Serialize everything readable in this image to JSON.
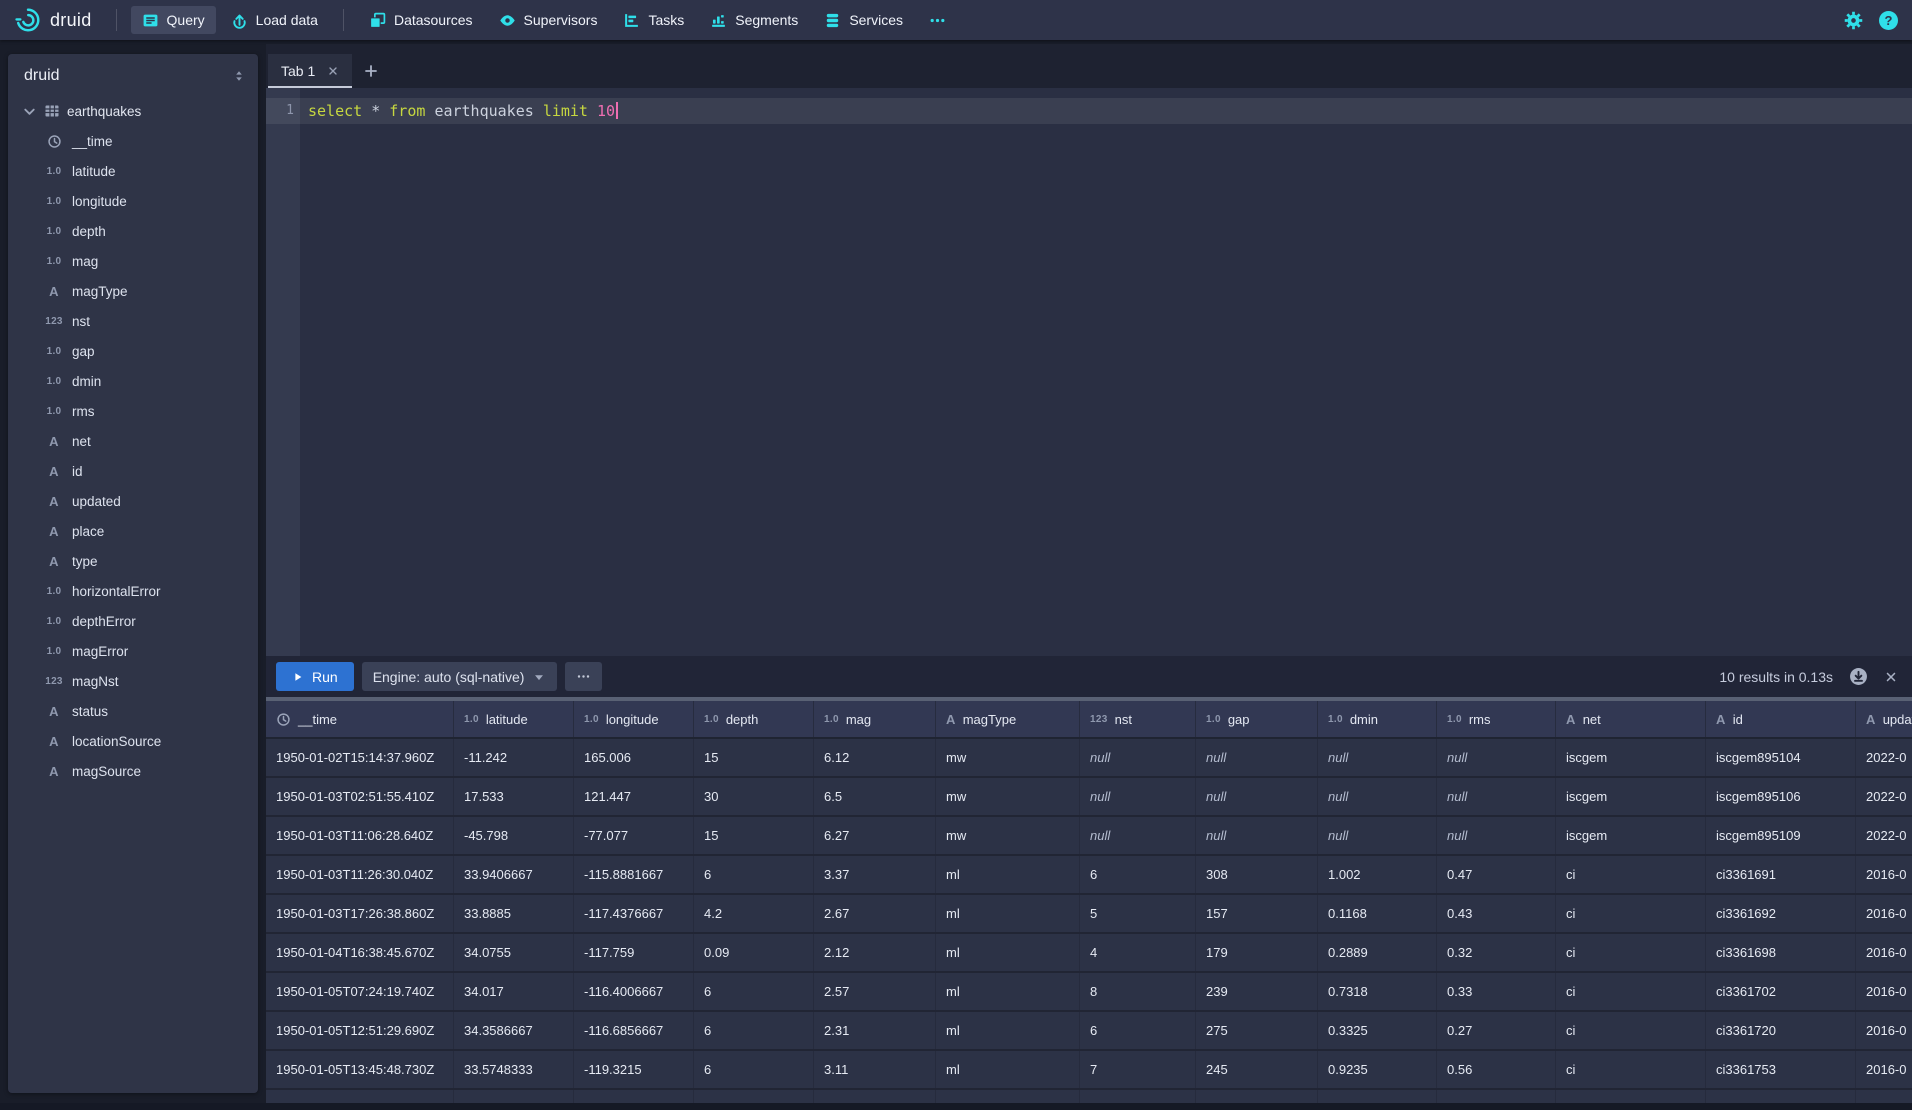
{
  "colors": {
    "accent_cyan": "#2fdfe9",
    "run_blue": "#2d72d2",
    "sql_keyword": "#c6d740",
    "sql_number": "#ef6eb1"
  },
  "navbar": {
    "brand": "druid",
    "primary": [
      {
        "label": "Query",
        "icon": "query-icon",
        "active": true
      },
      {
        "label": "Load data",
        "icon": "load-data-icon",
        "active": false
      }
    ],
    "secondary": [
      {
        "label": "Datasources",
        "icon": "datasources-icon",
        "active": false
      },
      {
        "label": "Supervisors",
        "icon": "supervisors-icon",
        "active": false
      },
      {
        "label": "Tasks",
        "icon": "tasks-icon",
        "active": false
      },
      {
        "label": "Segments",
        "icon": "segments-icon",
        "active": false
      },
      {
        "label": "Services",
        "icon": "services-icon",
        "active": false
      },
      {
        "label": "",
        "icon": "more-icon",
        "active": false
      }
    ],
    "right_icons": [
      "gear-icon",
      "help-icon"
    ]
  },
  "sidebar": {
    "title": "druid",
    "tree": {
      "root": {
        "label": "earthquakes",
        "icon": "table-icon",
        "expanded": true
      },
      "children": [
        {
          "name": "__time",
          "kind": "time"
        },
        {
          "name": "latitude",
          "kind": "float"
        },
        {
          "name": "longitude",
          "kind": "float"
        },
        {
          "name": "depth",
          "kind": "float"
        },
        {
          "name": "mag",
          "kind": "float"
        },
        {
          "name": "magType",
          "kind": "str"
        },
        {
          "name": "nst",
          "kind": "int"
        },
        {
          "name": "gap",
          "kind": "float"
        },
        {
          "name": "dmin",
          "kind": "float"
        },
        {
          "name": "rms",
          "kind": "float"
        },
        {
          "name": "net",
          "kind": "str"
        },
        {
          "name": "id",
          "kind": "str"
        },
        {
          "name": "updated",
          "kind": "str"
        },
        {
          "name": "place",
          "kind": "str"
        },
        {
          "name": "type",
          "kind": "str"
        },
        {
          "name": "horizontalError",
          "kind": "float"
        },
        {
          "name": "depthError",
          "kind": "float"
        },
        {
          "name": "magError",
          "kind": "float"
        },
        {
          "name": "magNst",
          "kind": "int"
        },
        {
          "name": "status",
          "kind": "str"
        },
        {
          "name": "locationSource",
          "kind": "str"
        },
        {
          "name": "magSource",
          "kind": "str"
        }
      ]
    }
  },
  "tabs": {
    "items": [
      {
        "label": "Tab 1",
        "active": true
      }
    ]
  },
  "editor": {
    "line_number": "1",
    "tokens": [
      {
        "t": "select",
        "k": "kw"
      },
      {
        "t": "*",
        "k": "id"
      },
      {
        "t": "from",
        "k": "kw"
      },
      {
        "t": "earthquakes",
        "k": "id"
      },
      {
        "t": "limit",
        "k": "kw"
      },
      {
        "t": "10",
        "k": "num"
      }
    ]
  },
  "runbar": {
    "run_label": "Run",
    "engine_label": "Engine: auto (sql-native)",
    "results_text": "10 results in 0.13s"
  },
  "results": {
    "columns": [
      {
        "label": "__time",
        "kind": "time"
      },
      {
        "label": "latitude",
        "kind": "float"
      },
      {
        "label": "longitude",
        "kind": "float"
      },
      {
        "label": "depth",
        "kind": "float"
      },
      {
        "label": "mag",
        "kind": "float"
      },
      {
        "label": "magType",
        "kind": "str"
      },
      {
        "label": "nst",
        "kind": "int"
      },
      {
        "label": "gap",
        "kind": "float"
      },
      {
        "label": "dmin",
        "kind": "float"
      },
      {
        "label": "rms",
        "kind": "float"
      },
      {
        "label": "net",
        "kind": "str"
      },
      {
        "label": "id",
        "kind": "str"
      },
      {
        "label": "updated",
        "kind": "str"
      }
    ],
    "rows": [
      [
        "1950-01-02T15:14:37.960Z",
        "-11.242",
        "165.006",
        "15",
        "6.12",
        "mw",
        "null",
        "null",
        "null",
        "null",
        "iscgem",
        "iscgem895104",
        "2022-0"
      ],
      [
        "1950-01-03T02:51:55.410Z",
        "17.533",
        "121.447",
        "30",
        "6.5",
        "mw",
        "null",
        "null",
        "null",
        "null",
        "iscgem",
        "iscgem895106",
        "2022-0"
      ],
      [
        "1950-01-03T11:06:28.640Z",
        "-45.798",
        "-77.077",
        "15",
        "6.27",
        "mw",
        "null",
        "null",
        "null",
        "null",
        "iscgem",
        "iscgem895109",
        "2022-0"
      ],
      [
        "1950-01-03T11:26:30.040Z",
        "33.9406667",
        "-115.8881667",
        "6",
        "3.37",
        "ml",
        "6",
        "308",
        "1.002",
        "0.47",
        "ci",
        "ci3361691",
        "2016-0"
      ],
      [
        "1950-01-03T17:26:38.860Z",
        "33.8885",
        "-117.4376667",
        "4.2",
        "2.67",
        "ml",
        "5",
        "157",
        "0.1168",
        "0.43",
        "ci",
        "ci3361692",
        "2016-0"
      ],
      [
        "1950-01-04T16:38:45.670Z",
        "34.0755",
        "-117.759",
        "0.09",
        "2.12",
        "ml",
        "4",
        "179",
        "0.2889",
        "0.32",
        "ci",
        "ci3361698",
        "2016-0"
      ],
      [
        "1950-01-05T07:24:19.740Z",
        "34.017",
        "-116.4006667",
        "6",
        "2.57",
        "ml",
        "8",
        "239",
        "0.7318",
        "0.33",
        "ci",
        "ci3361702",
        "2016-0"
      ],
      [
        "1950-01-05T12:51:29.690Z",
        "34.3586667",
        "-116.6856667",
        "6",
        "2.31",
        "ml",
        "6",
        "275",
        "0.3325",
        "0.27",
        "ci",
        "ci3361720",
        "2016-0"
      ],
      [
        "1950-01-05T13:45:48.730Z",
        "33.5748333",
        "-119.3215",
        "6",
        "3.11",
        "ml",
        "7",
        "245",
        "0.9235",
        "0.56",
        "ci",
        "ci3361753",
        "2016-0"
      ]
    ]
  }
}
